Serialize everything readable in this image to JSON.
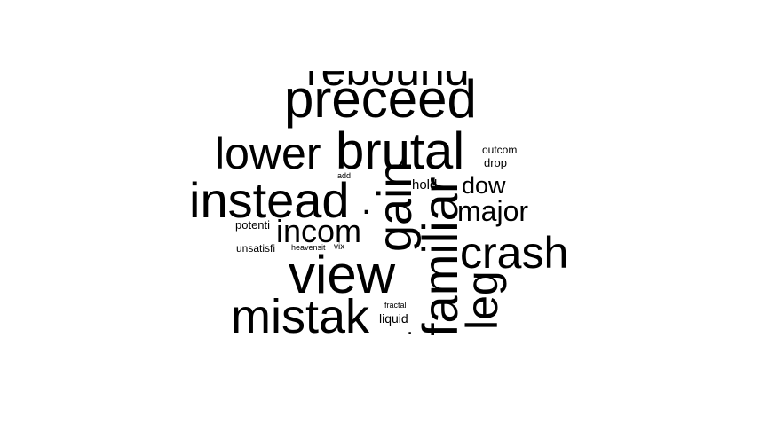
{
  "wordcloud": {
    "color": "#000000",
    "background": "#ffffff",
    "words": [
      {
        "id": "rebound",
        "text": "rebound"
      },
      {
        "id": "preceed",
        "text": "preceed"
      },
      {
        "id": "lower",
        "text": "lower"
      },
      {
        "id": "brutal",
        "text": "brutal"
      },
      {
        "id": "outcom",
        "text": "outcom"
      },
      {
        "id": "drop",
        "text": "drop"
      },
      {
        "id": "instead",
        "text": "instead"
      },
      {
        "id": "add",
        "text": "add"
      },
      {
        "id": "hold",
        "text": "hold"
      },
      {
        "id": "dow",
        "text": "dow"
      },
      {
        "id": "major",
        "text": "major"
      },
      {
        "id": "potenti",
        "text": "potenti"
      },
      {
        "id": "incom",
        "text": "incom"
      },
      {
        "id": "unsatisfi",
        "text": "unsatisfi"
      },
      {
        "id": "heavensit",
        "text": "heavensit"
      },
      {
        "id": "vix",
        "text": "vix"
      },
      {
        "id": "crash",
        "text": "crash"
      },
      {
        "id": "view",
        "text": "view"
      },
      {
        "id": "mistak",
        "text": "mistak"
      },
      {
        "id": "fractal",
        "text": "fractal"
      },
      {
        "id": "liquid",
        "text": "liquid"
      },
      {
        "id": "gain",
        "text": "gain"
      },
      {
        "id": "familiar",
        "text": "familiar"
      },
      {
        "id": "leg",
        "text": "leg"
      },
      {
        "id": "dot",
        "text": "."
      },
      {
        "id": "tick",
        "text": "."
      }
    ]
  }
}
